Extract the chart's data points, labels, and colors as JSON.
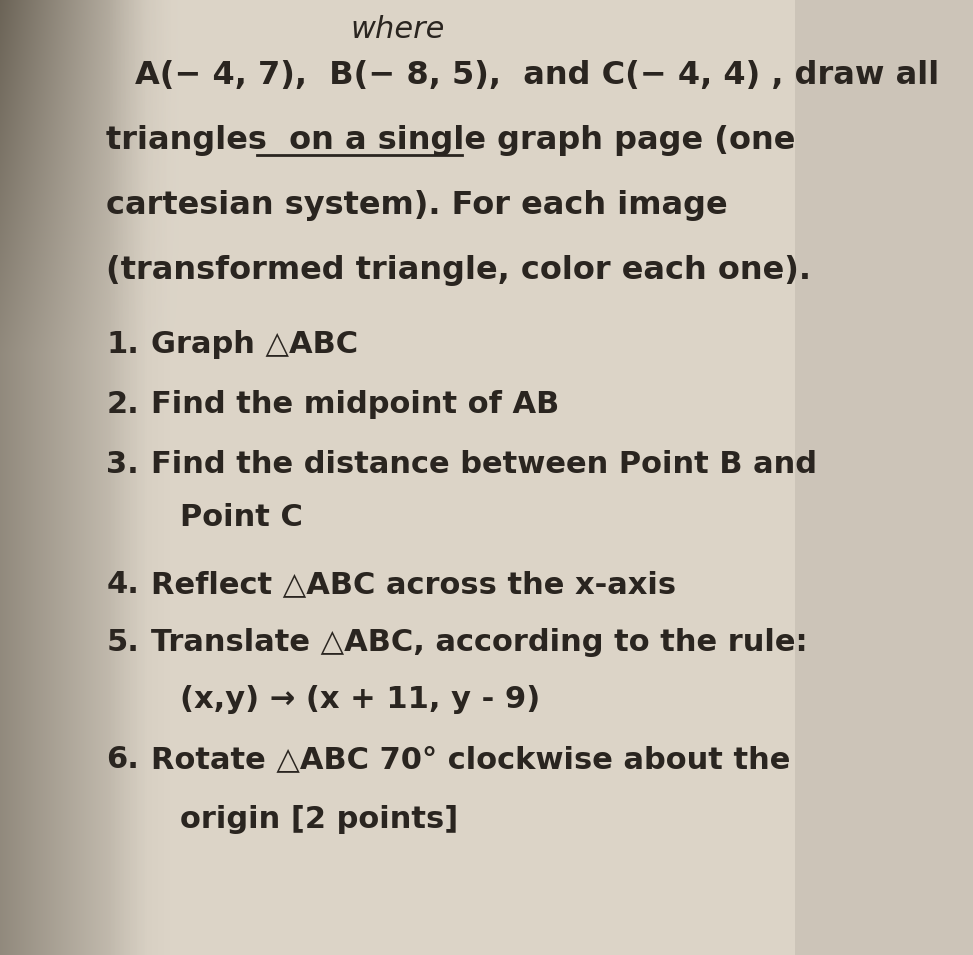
{
  "bg_color_top": "#b8b0a4",
  "bg_color_mid": "#ccc4b8",
  "paper_color": "#d4cfc6",
  "paper_light": "#e8e4dc",
  "text_color": "#2a2520",
  "title_partial": "where",
  "line1": "A(− 4, 7),  B(− 8, 5),  and C(− 4, 4) , draw all",
  "line2_pre": "triangles  on ",
  "line2_underlined": "a single graph page",
  "line2_post": " (one",
  "line3": "cartesian system). For each image",
  "line4": "(transformed triangle, color each one).",
  "items": [
    {
      "num": "1.",
      "text": "Graph △ABC",
      "indent": false,
      "sub": false
    },
    {
      "num": "2.",
      "text": "Find the midpoint of AB",
      "indent": false,
      "sub": false
    },
    {
      "num": "3.",
      "text": "Find the distance between Point B and",
      "indent": false,
      "sub": false
    },
    {
      "num": "",
      "text": "Point C",
      "indent": true,
      "sub": true
    },
    {
      "num": "4.",
      "text": "Reflect △ABC across the x-axis",
      "indent": false,
      "sub": false
    },
    {
      "num": "5.",
      "text": "Translate △ABC, according to the rule:",
      "indent": false,
      "sub": false
    },
    {
      "num": "",
      "text": "(x,y) → (x + 11, y - 9)",
      "indent": true,
      "sub": true
    },
    {
      "num": "6.",
      "text": "Rotate △ABC 70° clockwise about the",
      "indent": false,
      "sub": false
    },
    {
      "num": "",
      "text": "origin [2 points]",
      "indent": true,
      "sub": true
    }
  ],
  "font_size_top": 22,
  "font_size_body": 23,
  "font_size_items": 22
}
